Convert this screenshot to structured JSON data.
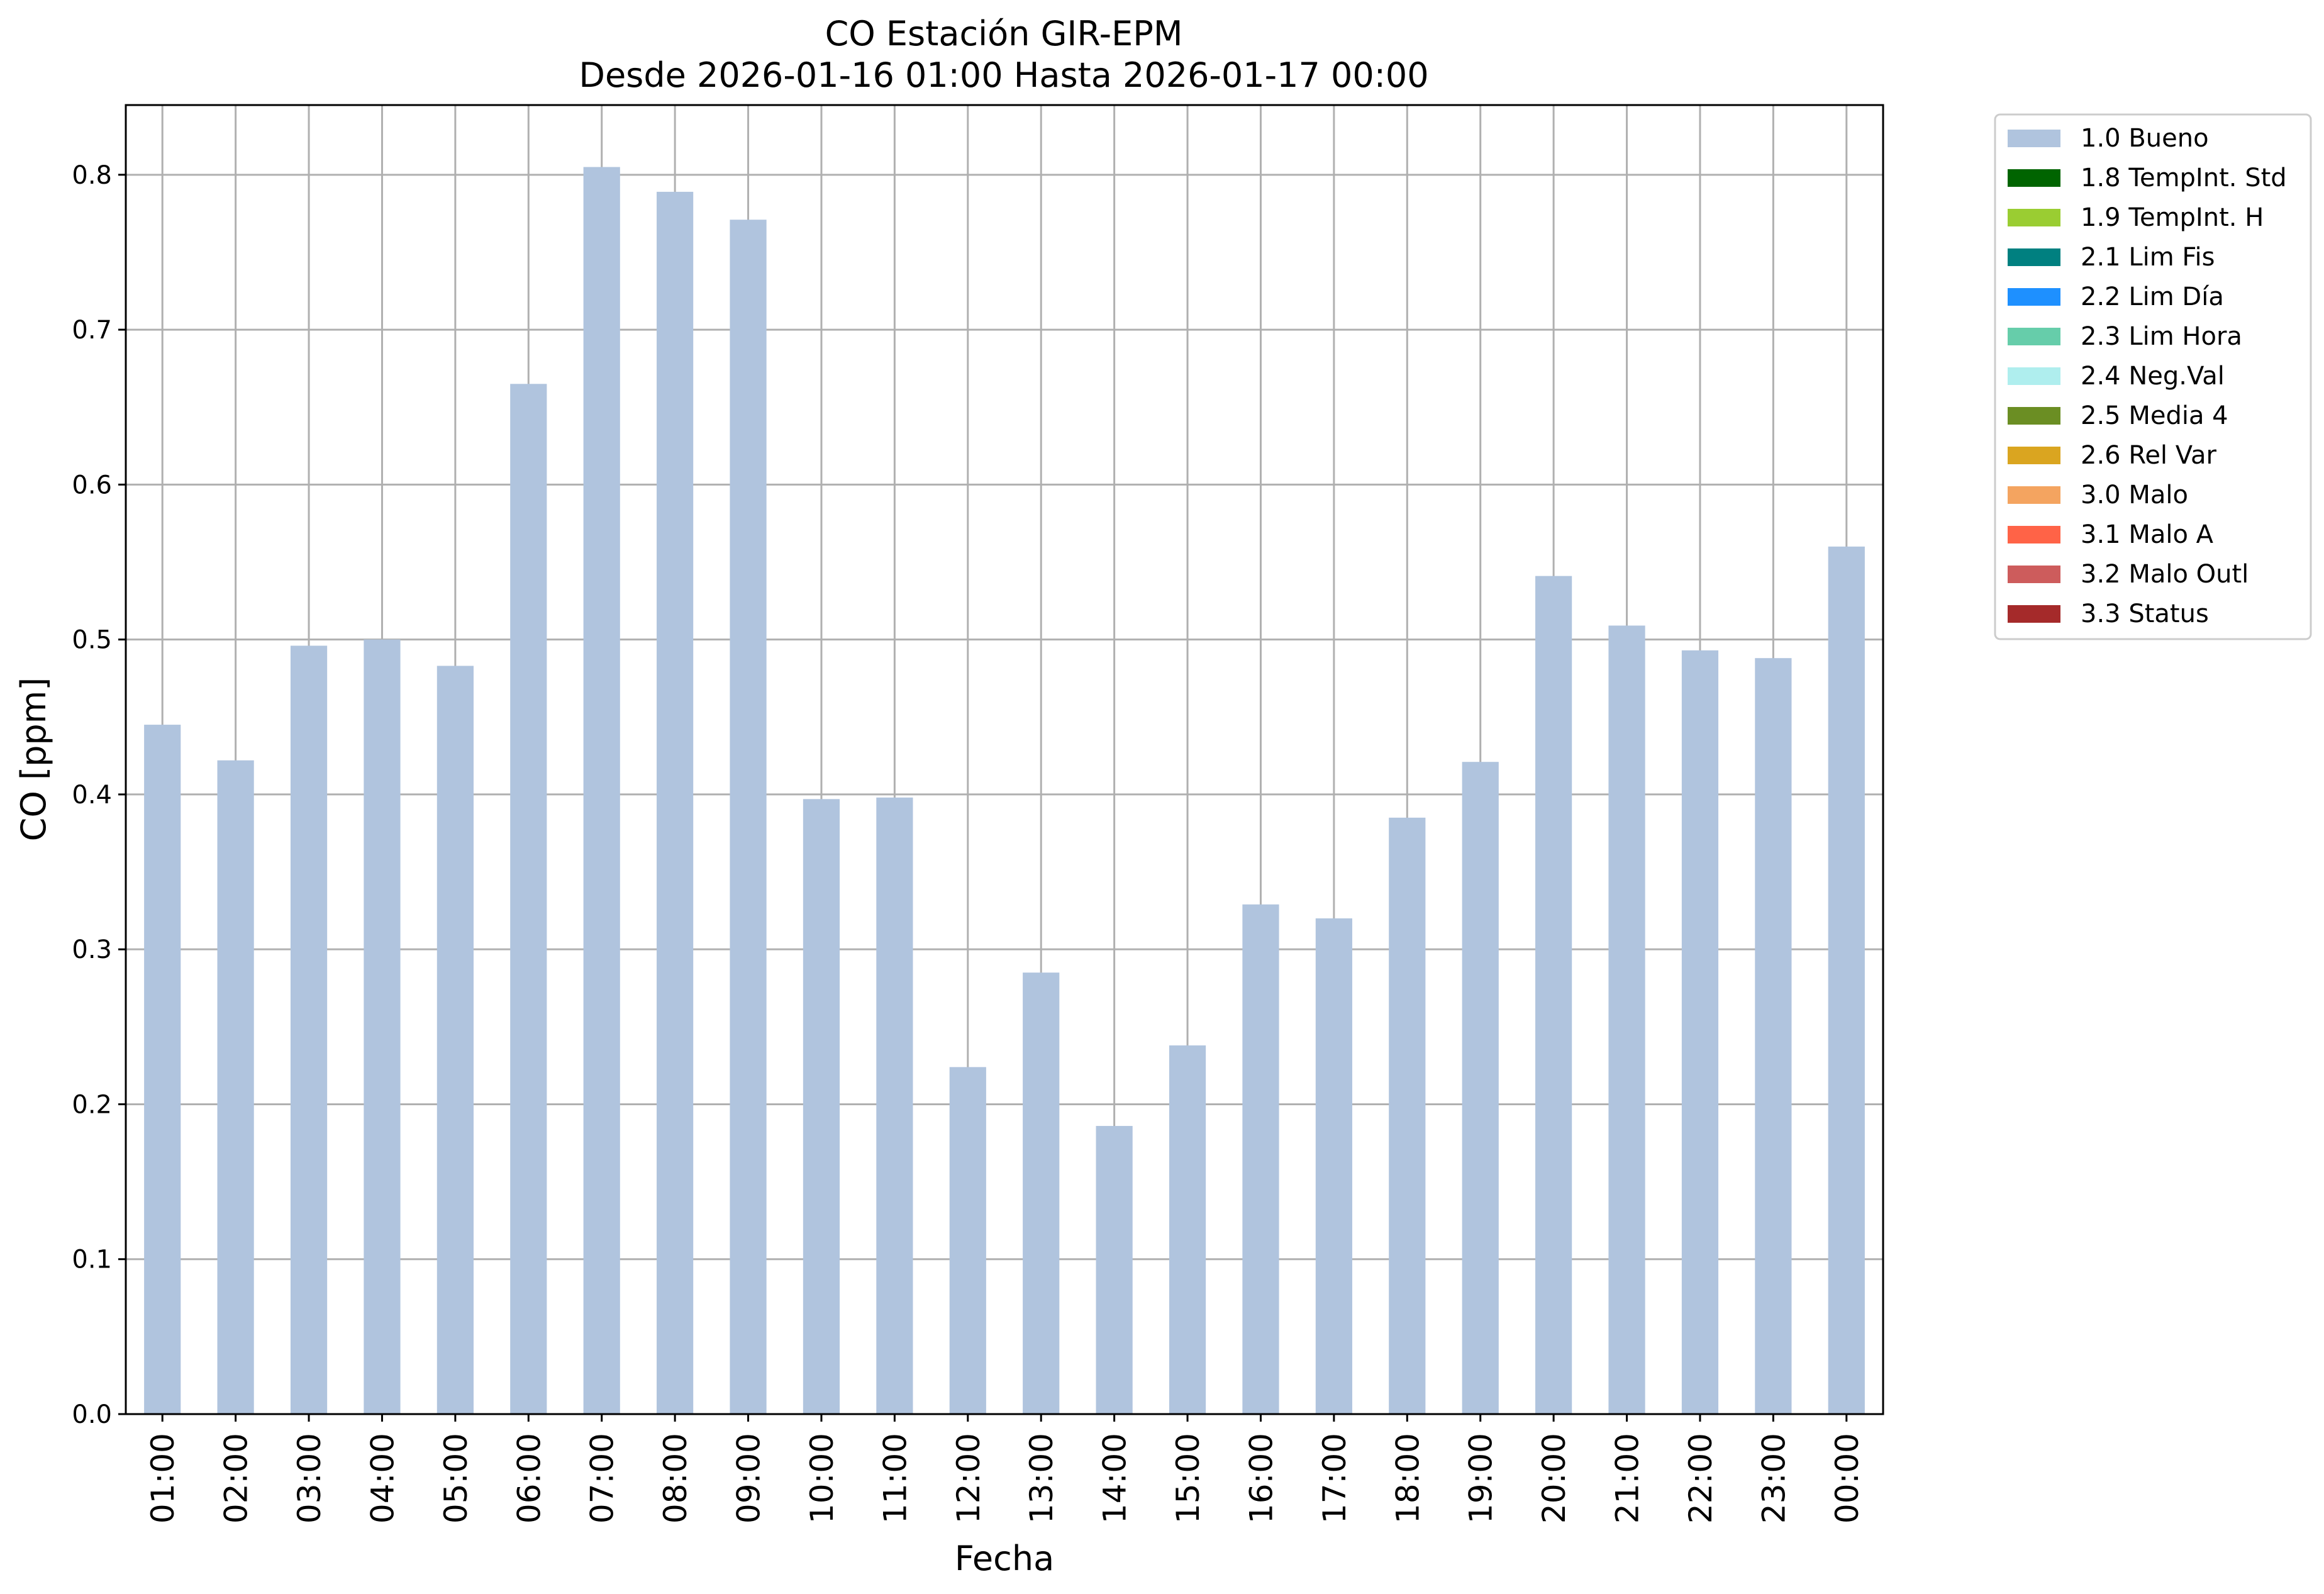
{
  "chart_data": {
    "type": "bar",
    "title": "CO Estación GIR-EPM",
    "subtitle": "Desde 2026-01-16 01:00 Hasta 2026-01-17 00:00",
    "xlabel": "Fecha",
    "ylabel": "CO [ppm]",
    "ylim": [
      0,
      0.845
    ],
    "yticks": [
      "0.0",
      "0.1",
      "0.2",
      "0.3",
      "0.4",
      "0.5",
      "0.6",
      "0.7",
      "0.8"
    ],
    "grid": true,
    "legend_position": "outside-top-right",
    "bar_color": "#b0c4de",
    "categories": [
      "01:00",
      "02:00",
      "03:00",
      "04:00",
      "05:00",
      "06:00",
      "07:00",
      "08:00",
      "09:00",
      "10:00",
      "11:00",
      "12:00",
      "13:00",
      "14:00",
      "15:00",
      "16:00",
      "17:00",
      "18:00",
      "19:00",
      "20:00",
      "21:00",
      "22:00",
      "23:00",
      "00:00"
    ],
    "series": [
      {
        "name": "1.0 Bueno",
        "values": [
          0.445,
          0.422,
          0.496,
          0.5,
          0.483,
          0.665,
          0.805,
          0.789,
          0.771,
          0.397,
          0.398,
          0.224,
          0.285,
          0.186,
          0.238,
          0.329,
          0.32,
          0.385,
          0.421,
          0.541,
          0.509,
          0.493,
          0.488,
          0.56
        ]
      }
    ],
    "legend": [
      {
        "label": "1.0 Bueno",
        "color": "#b0c4de"
      },
      {
        "label": "1.8 TempInt. Std",
        "color": "#006400"
      },
      {
        "label": "1.9 TempInt. H",
        "color": "#9acd32"
      },
      {
        "label": "2.1 Lim Fis",
        "color": "#008080"
      },
      {
        "label": "2.2 Lim Día",
        "color": "#1e90ff"
      },
      {
        "label": "2.3 Lim Hora",
        "color": "#66cdaa"
      },
      {
        "label": "2.4 Neg.Val",
        "color": "#afeeee"
      },
      {
        "label": "2.5 Media 4",
        "color": "#6b8e23"
      },
      {
        "label": "2.6 Rel Var",
        "color": "#daa520"
      },
      {
        "label": "3.0 Malo",
        "color": "#f4a460"
      },
      {
        "label": "3.1 Malo A",
        "color": "#ff6347"
      },
      {
        "label": "3.2 Malo Outl",
        "color": "#cd5c5c"
      },
      {
        "label": "3.3 Status",
        "color": "#a52a2a"
      }
    ]
  }
}
